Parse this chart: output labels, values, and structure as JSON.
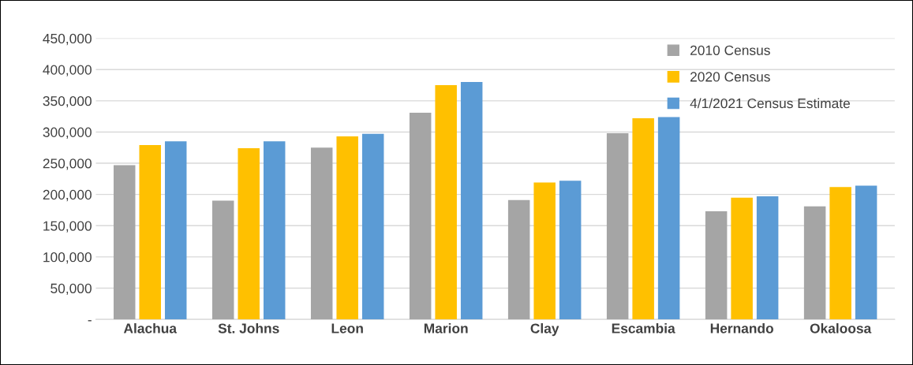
{
  "chart_data": {
    "type": "bar",
    "categories": [
      "Alachua",
      "St. Johns",
      "Leon",
      "Marion",
      "Clay",
      "Escambia",
      "Hernando",
      "Okaloosa"
    ],
    "series": [
      {
        "name": "2010 Census",
        "color": "#a5a5a5",
        "values": [
          247000,
          190000,
          275000,
          331000,
          191000,
          298000,
          173000,
          181000
        ]
      },
      {
        "name": "2020 Census",
        "color": "#ffc000",
        "values": [
          279000,
          274000,
          293000,
          375000,
          219000,
          322000,
          195000,
          212000
        ]
      },
      {
        "name": "4/1/2021 Census Estimate",
        "color": "#5b9bd5",
        "values": [
          285000,
          285000,
          297000,
          380000,
          222000,
          324000,
          197000,
          214000
        ]
      }
    ],
    "ylim": [
      0,
      450000
    ],
    "yticks": [
      {
        "value": 0,
        "label": "-"
      },
      {
        "value": 50000,
        "label": "50,000"
      },
      {
        "value": 100000,
        "label": "100,000"
      },
      {
        "value": 150000,
        "label": "150,000"
      },
      {
        "value": 200000,
        "label": "200,000"
      },
      {
        "value": 250000,
        "label": "250,000"
      },
      {
        "value": 300000,
        "label": "300,000"
      },
      {
        "value": 350000,
        "label": "350,000"
      },
      {
        "value": 400000,
        "label": "400,000"
      },
      {
        "value": 450000,
        "label": "450,000"
      }
    ],
    "grid": "y",
    "legend": "top right"
  }
}
